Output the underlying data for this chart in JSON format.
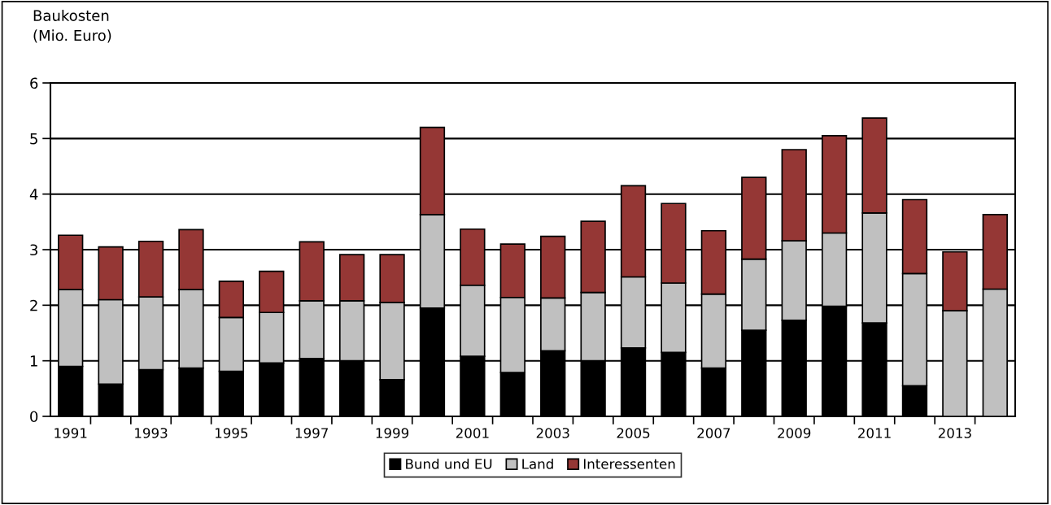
{
  "chart_data": {
    "type": "bar",
    "stacked": true,
    "ylabel": "Baukosten\n(Mio. Euro)",
    "categories": [
      "1991",
      null,
      "1993",
      null,
      "1995",
      null,
      "1997",
      null,
      "1999",
      null,
      "2001",
      null,
      "2003",
      null,
      "2005",
      null,
      "2007",
      null,
      "2009",
      null,
      "2011",
      null,
      "2013",
      null
    ],
    "series": [
      {
        "name": "Bund und EU",
        "color": "#000000",
        "values": [
          0.9,
          0.58,
          0.84,
          0.87,
          0.81,
          0.96,
          1.04,
          1.0,
          0.66,
          1.95,
          1.08,
          0.79,
          1.18,
          1.0,
          1.23,
          1.15,
          0.87,
          1.55,
          1.73,
          1.98,
          1.68,
          0.55,
          0,
          0
        ]
      },
      {
        "name": "Land",
        "color": "#c0c0c0",
        "values": [
          1.38,
          1.52,
          1.31,
          1.41,
          0.97,
          0.91,
          1.04,
          1.08,
          1.39,
          1.68,
          1.28,
          1.35,
          0.95,
          1.23,
          1.28,
          1.25,
          1.33,
          1.28,
          1.43,
          1.32,
          1.98,
          2.02,
          1.9,
          2.29
        ]
      },
      {
        "name": "Interessenten",
        "color": "#953735",
        "values": [
          0.98,
          0.95,
          1.0,
          1.08,
          0.65,
          0.74,
          1.06,
          0.83,
          0.86,
          1.57,
          1.01,
          0.96,
          1.11,
          1.28,
          1.64,
          1.43,
          1.14,
          1.47,
          1.64,
          1.75,
          1.71,
          1.33,
          1.06,
          1.34
        ]
      }
    ],
    "ylim": [
      0,
      6
    ],
    "yticks": [
      0,
      1,
      2,
      3,
      4,
      5,
      6
    ],
    "grid": "y",
    "legend": "bottom"
  }
}
